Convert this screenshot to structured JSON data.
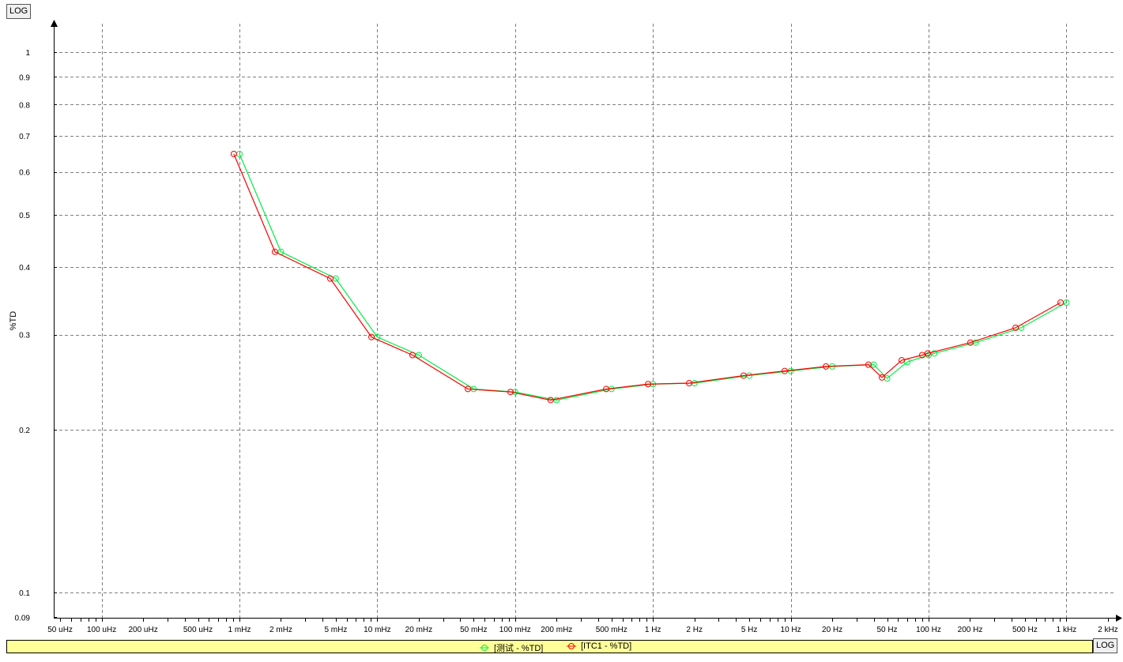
{
  "y_log_button": "LOG",
  "x_log_button": "LOG",
  "chart_data": {
    "type": "line",
    "xscale": "log",
    "yscale": "log",
    "ylabel": "%TD",
    "xlabel": "",
    "xlim": [
      4.5e-05,
      2200
    ],
    "ylim": [
      0.09,
      1.13
    ],
    "grid": true,
    "legend_position": "bottom",
    "x_tick_values": [
      5e-05,
      0.0001,
      0.0002,
      0.0005,
      0.001,
      0.002,
      0.005,
      0.01,
      0.02,
      0.05,
      0.1,
      0.2,
      0.5,
      1,
      2,
      5,
      10,
      20,
      50,
      100,
      200,
      500,
      1000,
      2000
    ],
    "x_tick_labels": [
      "50 uHz",
      "100 uHz",
      "200 uHz",
      "500 uHz",
      "1 mHz",
      "2 mHz",
      "5 mHz",
      "10 mHz",
      "20 mHz",
      "50 mHz",
      "100 mHz",
      "200 mHz",
      "500 mHz",
      "1 Hz",
      "2 Hz",
      "5 Hz",
      "10 Hz",
      "20 Hz",
      "50 Hz",
      "100 Hz",
      "200 Hz",
      "500 Hz",
      "1 kHz",
      "2 kHz"
    ],
    "y_tick_values": [
      1,
      0.9,
      0.8,
      0.7,
      0.6,
      0.5,
      0.4,
      0.3,
      0.2,
      0.1,
      0.09
    ],
    "y_tick_labels": [
      "1",
      "0.9",
      "0.8",
      "0.7",
      "0.6",
      "0.5",
      "0.4",
      "0.3",
      "0.2",
      "0.1",
      "0.09"
    ],
    "x_grid_values": [
      0.0001,
      0.001,
      0.01,
      0.1,
      1,
      10,
      100,
      1000
    ],
    "y_grid_values": [
      1,
      0.9,
      0.8,
      0.7,
      0.6,
      0.5,
      0.4,
      0.3,
      0.2,
      0.1
    ],
    "series": [
      {
        "name": "[测试 - %TD]",
        "color": "#00ee44",
        "x": [
          0.001,
          0.002,
          0.005,
          0.01,
          0.02,
          0.05,
          0.1,
          0.2,
          0.5,
          1,
          2,
          5,
          10,
          20,
          40,
          50,
          70,
          100,
          110,
          220,
          470,
          1000
        ],
        "y": [
          0.648,
          0.427,
          0.381,
          0.297,
          0.275,
          0.238,
          0.235,
          0.227,
          0.238,
          0.243,
          0.244,
          0.252,
          0.257,
          0.262,
          0.264,
          0.249,
          0.267,
          0.275,
          0.277,
          0.29,
          0.309,
          0.344
        ]
      },
      {
        "name": "[ITC1 - %TD]",
        "color": "#ff0000",
        "x": [
          0.00091,
          0.00181,
          0.00456,
          0.00907,
          0.018,
          0.0454,
          0.0926,
          0.181,
          0.458,
          0.922,
          1.83,
          4.55,
          9.04,
          18.0,
          36.6,
          45.9,
          63.8,
          89.9,
          98.6,
          201,
          428,
          907
        ],
        "y": [
          0.648,
          0.427,
          0.381,
          0.297,
          0.275,
          0.238,
          0.235,
          0.227,
          0.238,
          0.243,
          0.244,
          0.252,
          0.257,
          0.262,
          0.264,
          0.25,
          0.269,
          0.275,
          0.277,
          0.29,
          0.309,
          0.344
        ]
      }
    ]
  }
}
